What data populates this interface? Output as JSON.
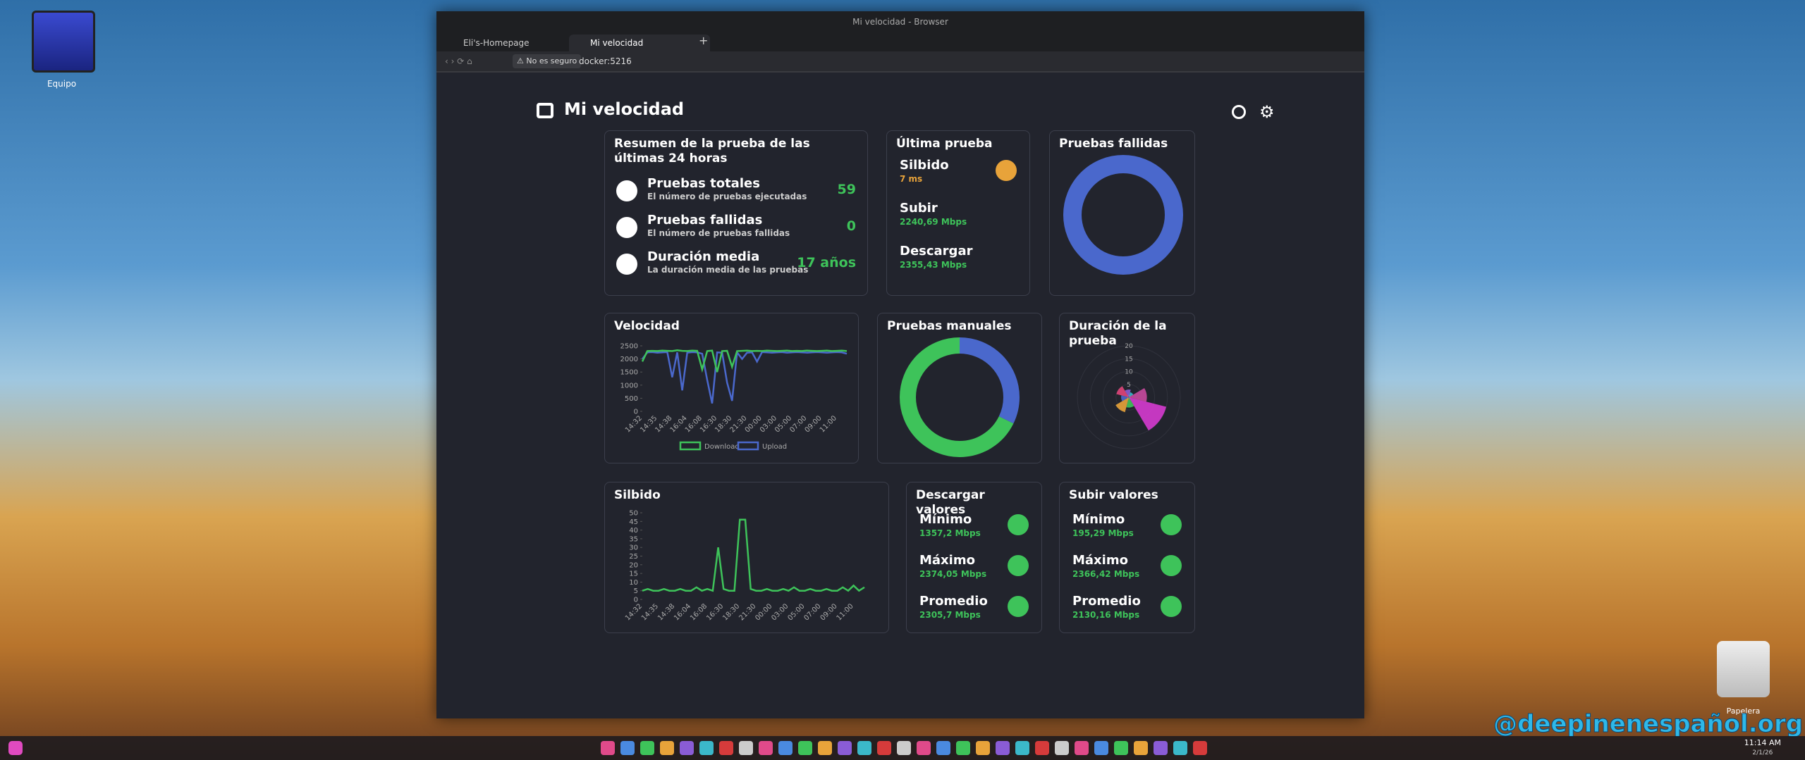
{
  "window": {
    "title": "Mi velocidad - Browser",
    "tabs": [
      "Eli's-Homepage",
      "Mi velocidad"
    ],
    "security": "No es seguro",
    "url": "docker:5216"
  },
  "desktop": {
    "icons": [
      "Equipo",
      "Papelera"
    ],
    "watermark": "@deepinenespañol.org",
    "clock": "11:14 AM",
    "date": "2/1/26"
  },
  "header": {
    "title": "Mi velocidad"
  },
  "summary": {
    "title": "Resumen de la prueba de las últimas 24 horas",
    "rows": [
      {
        "label": "Pruebas totales",
        "desc": "El número de pruebas ejecutadas",
        "value": 59
      },
      {
        "label": "Pruebas fallidas",
        "desc": "El número de pruebas fallidas",
        "value": 0
      },
      {
        "label": "Duración media",
        "desc": "La duración media de las pruebas",
        "value": "17 años"
      }
    ]
  },
  "latest": {
    "title": "Última prueba",
    "rows": [
      {
        "label": "Silbido",
        "value": "7 ms"
      },
      {
        "label": "Subir",
        "value": "2240,69 Mbps"
      },
      {
        "label": "Descargar",
        "value": "2355,43 Mbps"
      }
    ]
  },
  "failed": {
    "title": "Pruebas fallidas",
    "values": [
      59
    ],
    "colors": [
      "#4a68cc"
    ]
  },
  "speed": {
    "title": "Velocidad",
    "ylim": [
      0,
      2500
    ],
    "yticks": [
      0,
      500,
      1000,
      1500,
      2000,
      2500
    ],
    "categories": [
      "14:32",
      null,
      null,
      "14:35",
      null,
      null,
      "14:38",
      null,
      null,
      "16:04",
      null,
      null,
      "16:08",
      null,
      null,
      "16:30",
      null,
      null,
      "18:30",
      null,
      null,
      "21:30",
      null,
      null,
      "00:00",
      null,
      null,
      "03:00",
      null,
      null,
      "05:00",
      null,
      null,
      "07:00",
      null,
      null,
      "09:00",
      null,
      null,
      "11:00",
      null,
      null
    ],
    "series": [
      {
        "name": "Download",
        "color": "#3ec35a",
        "values": [
          1900,
          2300,
          2310,
          2300,
          2320,
          2310,
          2300,
          2330,
          2310,
          2300,
          2320,
          2310,
          1600,
          2300,
          2320,
          1500,
          2300,
          2310,
          1700,
          2300,
          2310,
          2320,
          2300,
          2310,
          2300,
          2320,
          2310,
          2300,
          2310,
          2320,
          2300,
          2310,
          2300,
          2320,
          2310,
          2300,
          2310,
          2320,
          2300,
          2310,
          2320,
          2300
        ]
      },
      {
        "name": "Upload",
        "color": "#4a68cc",
        "values": [
          2000,
          2250,
          2260,
          2240,
          2250,
          2260,
          1300,
          2250,
          800,
          2240,
          2260,
          2250,
          2200,
          1200,
          300,
          2250,
          2240,
          1100,
          400,
          2250,
          2000,
          2240,
          2250,
          1900,
          2260,
          2250,
          2240,
          2250,
          2260,
          2240,
          2250,
          2260,
          2250,
          2240,
          2250,
          2260,
          2250,
          2240,
          2250,
          2260,
          2250,
          2200
        ]
      }
    ]
  },
  "manual": {
    "title": "Pruebas manuales",
    "values": [
      19,
      40
    ],
    "colors": [
      "#4a68cc",
      "#3ec35a"
    ]
  },
  "duration": {
    "title": "Duración de la prueba",
    "rlim": [
      0,
      20
    ],
    "rticks": [
      0,
      5,
      10,
      15,
      20
    ],
    "values": [
      15,
      4,
      6,
      3,
      5,
      3,
      2,
      7
    ],
    "colors": [
      "#d63bd0",
      "#3ec35a",
      "#e8a33a",
      "#4a68cc",
      "#e0457a",
      "#8a5cd6",
      "#3bb8c9",
      "#c94a9e"
    ]
  },
  "ping": {
    "title": "Silbido",
    "ylim": [
      0,
      50
    ],
    "yticks": [
      0,
      5,
      10,
      15,
      20,
      25,
      30,
      35,
      40,
      45,
      50
    ],
    "color": "#3ec35a",
    "categories": [
      "14:32",
      null,
      null,
      "14:35",
      null,
      null,
      "14:38",
      null,
      null,
      "16:04",
      null,
      null,
      "16:08",
      null,
      null,
      "16:30",
      null,
      null,
      "18:30",
      null,
      null,
      "21:30",
      null,
      null,
      "00:00",
      null,
      null,
      "03:00",
      null,
      null,
      "05:00",
      null,
      null,
      "07:00",
      null,
      null,
      "09:00",
      null,
      null,
      "11:00",
      null,
      null
    ],
    "values": [
      5,
      6,
      5,
      5,
      6,
      5,
      5,
      6,
      5,
      5,
      7,
      5,
      6,
      5,
      30,
      6,
      5,
      5,
      46,
      46,
      6,
      5,
      5,
      6,
      5,
      5,
      6,
      5,
      7,
      5,
      5,
      6,
      5,
      5,
      6,
      5,
      5,
      7,
      5,
      8,
      5,
      7
    ]
  },
  "download": {
    "title": "Descargar valores",
    "rows": [
      {
        "label": "Mínimo",
        "value": "1357,2 Mbps"
      },
      {
        "label": "Máximo",
        "value": "2374,05 Mbps"
      },
      {
        "label": "Promedio",
        "value": "2305,7 Mbps"
      }
    ]
  },
  "upload": {
    "title": "Subir valores",
    "rows": [
      {
        "label": "Mínimo",
        "value": "195,29 Mbps"
      },
      {
        "label": "Máximo",
        "value": "2366,42 Mbps"
      },
      {
        "label": "Promedio",
        "value": "2130,16 Mbps"
      }
    ]
  }
}
